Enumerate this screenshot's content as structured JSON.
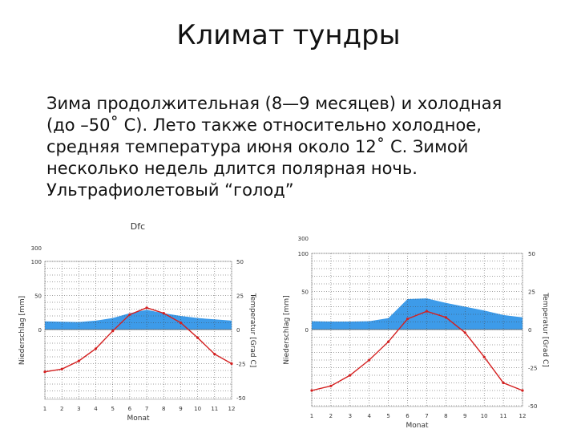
{
  "slide": {
    "title": "Климат тундры",
    "lines": [
      "Зима продолжительная (8—9 месяцев) и холодная",
      "(до –50˚ С). Лето также относительно холодное,",
      "средняя температура июня около 12˚ С. Зимой",
      "несколько недель длится полярная ночь.",
      "Ультрафиолетовый “голод”"
    ]
  },
  "chart_data": [
    {
      "type": "line",
      "title": "Dfc",
      "xlabel": "Monat",
      "ylabel": "Niederschlag [mm]",
      "y2label": "Temperatur [Grad C]",
      "x": [
        1,
        2,
        3,
        4,
        5,
        6,
        7,
        8,
        9,
        10,
        11,
        12
      ],
      "precip_ticks": [
        "300",
        "100",
        "50",
        "0"
      ],
      "temp_ticks": [
        "50",
        "25",
        "0",
        "-25",
        "-50"
      ],
      "temp_ylim": [
        -50,
        50
      ],
      "series": [
        {
          "name": "Niederschlag",
          "kind": "area",
          "axis": "precip",
          "color": "#3d9be9",
          "values": [
            12,
            11.5,
            11,
            13,
            17,
            24,
            29,
            24,
            20,
            17,
            15,
            13
          ]
        },
        {
          "name": "Temperatur",
          "kind": "line",
          "axis": "temp",
          "color": "#d42020",
          "values": [
            -31,
            -29,
            -23,
            -14,
            -1,
            11,
            16,
            12,
            5,
            -6,
            -18,
            -25
          ]
        }
      ]
    },
    {
      "type": "line",
      "title": "",
      "xlabel": "Monat",
      "ylabel": "Niederschlag [mm]",
      "y2label": "Temperatur [Grad C]",
      "x": [
        1,
        2,
        3,
        4,
        5,
        6,
        7,
        8,
        9,
        10,
        11,
        12
      ],
      "precip_ticks": [
        "300",
        "100",
        "50",
        "0"
      ],
      "temp_ticks": [
        "50",
        "25",
        "0",
        "-25",
        "-50"
      ],
      "temp_ylim": [
        -50,
        50
      ],
      "series": [
        {
          "name": "Niederschlag",
          "kind": "area",
          "axis": "precip",
          "color": "#3d9be9",
          "values": [
            11,
            10.5,
            10.5,
            11,
            15,
            40,
            41,
            35,
            30,
            25,
            19,
            16
          ]
        },
        {
          "name": "Temperatur",
          "kind": "line",
          "axis": "temp",
          "color": "#d42020",
          "values": [
            -40,
            -37,
            -30,
            -20,
            -8,
            7,
            12,
            8,
            -2,
            -18,
            -35,
            -40
          ]
        }
      ]
    }
  ]
}
